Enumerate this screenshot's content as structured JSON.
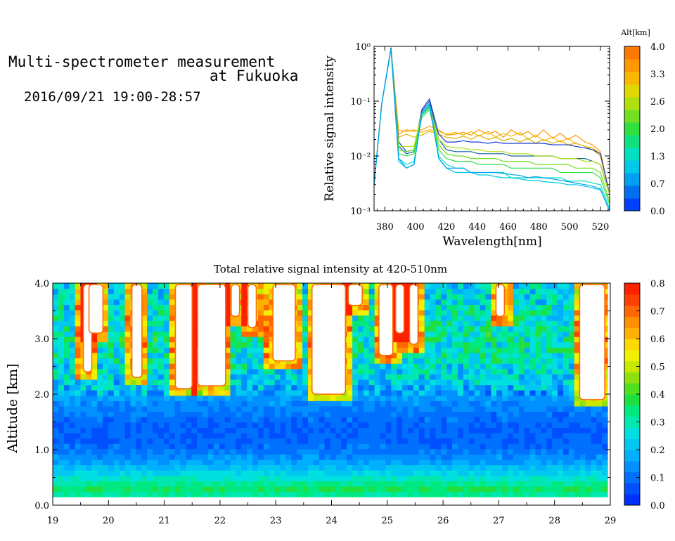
{
  "header": {
    "title_line1": "Multi-spectrometer measurement",
    "title_line2": "at Fukuoka",
    "datetime": "2016/09/21 19:00-28:57"
  },
  "chart_data": [
    {
      "type": "line",
      "xlabel": "Wavelength[nm]",
      "ylabel": "Relative signal intensity",
      "xlim": [
        373,
        526
      ],
      "ylim": [
        0.001,
        1
      ],
      "log_y": true,
      "x_ticks": [
        380,
        400,
        420,
        440,
        460,
        480,
        500,
        520
      ],
      "y_ticks": [
        "10⁻³",
        "10⁻²",
        "10⁻¹",
        "10⁰"
      ],
      "colorbar": {
        "title": "Alt[km]",
        "ticks": [
          "0.0",
          "0.7",
          "1.3",
          "2.0",
          "2.6",
          "3.3",
          "4.0"
        ],
        "colors": [
          "#0040ff",
          "#0070f0",
          "#00a0f0",
          "#00c8e8",
          "#00e0c0",
          "#10e080",
          "#30e040",
          "#70e020",
          "#b0e010",
          "#e0d800",
          "#f8b800",
          "#ff9800",
          "#ff7800"
        ]
      },
      "x": [
        373,
        378,
        384,
        389,
        394,
        399,
        404,
        409,
        415,
        420,
        426,
        431,
        436,
        441,
        447,
        452,
        457,
        462,
        468,
        473,
        478,
        483,
        489,
        494,
        499,
        504,
        510,
        515,
        520,
        526
      ],
      "series": [
        {
          "color": "#ff9800",
          "values": [
            0.003,
            0.09,
            0.9,
            0.025,
            0.03,
            0.028,
            0.03,
            0.035,
            0.03,
            0.024,
            0.025,
            0.027,
            0.024,
            0.03,
            0.025,
            0.028,
            0.022,
            0.03,
            0.024,
            0.028,
            0.022,
            0.03,
            0.021,
            0.026,
            0.02,
            0.024,
            0.018,
            0.016,
            0.012,
            0.002
          ]
        },
        {
          "color": "#f8b800",
          "values": [
            0.003,
            0.09,
            0.9,
            0.03,
            0.028,
            0.03,
            0.027,
            0.03,
            0.028,
            0.025,
            0.027,
            0.024,
            0.028,
            0.023,
            0.028,
            0.022,
            0.026,
            0.023,
            0.027,
            0.02,
            0.024,
            0.019,
            0.022,
            0.018,
            0.021,
            0.017,
            0.015,
            0.014,
            0.011,
            0.002
          ]
        },
        {
          "color": "#e0b000",
          "values": [
            0.003,
            0.09,
            0.9,
            0.022,
            0.025,
            0.022,
            0.024,
            0.028,
            0.025,
            0.022,
            0.021,
            0.023,
            0.02,
            0.024,
            0.02,
            0.022,
            0.019,
            0.021,
            0.018,
            0.021,
            0.017,
            0.02,
            0.017,
            0.019,
            0.016,
            0.017,
            0.015,
            0.013,
            0.01,
            0.002
          ]
        },
        {
          "color": "#1a3ccf",
          "values": [
            0.003,
            0.09,
            0.95,
            0.018,
            0.012,
            0.013,
            0.07,
            0.11,
            0.025,
            0.018,
            0.018,
            0.019,
            0.018,
            0.018,
            0.017,
            0.018,
            0.017,
            0.017,
            0.017,
            0.017,
            0.017,
            0.017,
            0.016,
            0.016,
            0.016,
            0.015,
            0.014,
            0.013,
            0.011,
            0.002
          ]
        },
        {
          "color": "#1060a0",
          "values": [
            0.003,
            0.09,
            0.95,
            0.015,
            0.011,
            0.012,
            0.065,
            0.1,
            0.02,
            0.013,
            0.012,
            0.012,
            0.012,
            0.011,
            0.011,
            0.011,
            0.011,
            0.01,
            0.01,
            0.01,
            0.01,
            0.01,
            0.01,
            0.009,
            0.009,
            0.009,
            0.009,
            0.008,
            0.007,
            0.002
          ]
        },
        {
          "color": "#b0e010",
          "values": [
            0.003,
            0.09,
            0.9,
            0.015,
            0.015,
            0.015,
            0.06,
            0.08,
            0.02,
            0.015,
            0.014,
            0.014,
            0.013,
            0.013,
            0.012,
            0.012,
            0.012,
            0.011,
            0.011,
            0.011,
            0.01,
            0.01,
            0.01,
            0.009,
            0.009,
            0.009,
            0.008,
            0.008,
            0.007,
            0.002
          ]
        },
        {
          "color": "#70e020",
          "values": [
            0.003,
            0.09,
            0.9,
            0.013,
            0.012,
            0.013,
            0.055,
            0.075,
            0.016,
            0.011,
            0.01,
            0.01,
            0.009,
            0.009,
            0.009,
            0.009,
            0.008,
            0.008,
            0.008,
            0.008,
            0.007,
            0.007,
            0.007,
            0.007,
            0.007,
            0.006,
            0.006,
            0.006,
            0.005,
            0.0015
          ]
        },
        {
          "color": "#30e040",
          "values": [
            0.003,
            0.09,
            0.9,
            0.011,
            0.01,
            0.011,
            0.05,
            0.07,
            0.013,
            0.009,
            0.008,
            0.008,
            0.008,
            0.007,
            0.007,
            0.007,
            0.007,
            0.006,
            0.006,
            0.006,
            0.006,
            0.006,
            0.006,
            0.005,
            0.005,
            0.005,
            0.005,
            0.005,
            0.004,
            0.0013
          ]
        },
        {
          "color": "#00e0c0",
          "values": [
            0.003,
            0.09,
            0.9,
            0.009,
            0.007,
            0.008,
            0.055,
            0.08,
            0.01,
            0.007,
            0.006,
            0.006,
            0.005,
            0.005,
            0.005,
            0.005,
            0.005,
            0.004,
            0.004,
            0.004,
            0.004,
            0.004,
            0.004,
            0.004,
            0.0035,
            0.0035,
            0.0035,
            0.0032,
            0.003,
            0.0011
          ]
        },
        {
          "color": "#00c8e8",
          "values": [
            0.003,
            0.09,
            0.9,
            0.008,
            0.006,
            0.007,
            0.055,
            0.085,
            0.009,
            0.006,
            0.005,
            0.005,
            0.005,
            0.0045,
            0.0045,
            0.0042,
            0.004,
            0.004,
            0.0038,
            0.0036,
            0.0036,
            0.0034,
            0.0033,
            0.0032,
            0.003,
            0.003,
            0.0028,
            0.0026,
            0.0024,
            0.001
          ]
        },
        {
          "color": "#00a0f0",
          "values": [
            0.003,
            0.09,
            0.9,
            0.009,
            0.006,
            0.007,
            0.06,
            0.09,
            0.009,
            0.006,
            0.006,
            0.006,
            0.005,
            0.005,
            0.005,
            0.005,
            0.0048,
            0.0046,
            0.0044,
            0.004,
            0.0042,
            0.004,
            0.0038,
            0.0036,
            0.0034,
            0.0032,
            0.003,
            0.0028,
            0.0025,
            0.001
          ]
        }
      ]
    },
    {
      "type": "heatmap",
      "title": "Total relative signal intensity at 420-510nm",
      "xlabel": "",
      "ylabel": "Altitude [km]",
      "xlim": [
        19,
        29
      ],
      "ylim": [
        0.0,
        4.0
      ],
      "x_ticks": [
        "19",
        "20",
        "21",
        "22",
        "23",
        "24",
        "25",
        "26",
        "27",
        "28",
        "29"
      ],
      "y_ticks": [
        "0.0",
        "1.0",
        "2.0",
        "3.0",
        "4.0"
      ],
      "x_range_data": [
        19.0,
        28.95
      ],
      "alt_range_data": [
        0.15,
        4.0
      ],
      "colorbar": {
        "ticks": [
          "0.0",
          "0.1",
          "0.2",
          "0.3",
          "0.4",
          "0.5",
          "0.6",
          "0.7",
          "0.8"
        ],
        "colors": [
          "#0030ff",
          "#0050ff",
          "#0070ff",
          "#0090ff",
          "#00b0ff",
          "#00c8f0",
          "#00e0e0",
          "#00e8b0",
          "#00e880",
          "#20e040",
          "#50e020",
          "#90e010",
          "#c8e800",
          "#f0f000",
          "#ffd800",
          "#ffb000",
          "#ff9000",
          "#ff6800",
          "#ff4000",
          "#ff2000"
        ],
        "range": [
          0.0,
          0.8
        ]
      },
      "profile": [
        {
          "alt": 0.15,
          "v": 0.3
        },
        {
          "alt": 0.3,
          "v": 0.36
        },
        {
          "alt": 0.45,
          "v": 0.3
        },
        {
          "alt": 0.6,
          "v": 0.23
        },
        {
          "alt": 0.8,
          "v": 0.16
        },
        {
          "alt": 1.0,
          "v": 0.1
        },
        {
          "alt": 1.3,
          "v": 0.08
        },
        {
          "alt": 1.6,
          "v": 0.1
        },
        {
          "alt": 1.9,
          "v": 0.15
        },
        {
          "alt": 2.2,
          "v": 0.22
        },
        {
          "alt": 2.6,
          "v": 0.27
        },
        {
          "alt": 3.0,
          "v": 0.3
        },
        {
          "alt": 3.5,
          "v": 0.27
        },
        {
          "alt": 4.0,
          "v": 0.22
        }
      ],
      "cloud_blocks": [
        {
          "t0": 19.55,
          "t1": 19.7,
          "base": 2.4
        },
        {
          "t0": 19.65,
          "t1": 19.9,
          "base": 3.1
        },
        {
          "t0": 20.42,
          "t1": 20.6,
          "base": 2.3
        },
        {
          "t0": 21.2,
          "t1": 21.5,
          "base": 2.1
        },
        {
          "t0": 21.6,
          "t1": 22.1,
          "base": 2.15
        },
        {
          "t0": 22.2,
          "t1": 22.35,
          "base": 3.4
        },
        {
          "t0": 22.5,
          "t1": 22.65,
          "base": 3.2
        },
        {
          "t0": 22.95,
          "t1": 23.35,
          "base": 2.6
        },
        {
          "t0": 23.65,
          "t1": 24.25,
          "base": 2.0
        },
        {
          "t0": 24.3,
          "t1": 24.55,
          "base": 3.6
        },
        {
          "t0": 24.85,
          "t1": 25.1,
          "base": 2.7
        },
        {
          "t0": 25.15,
          "t1": 25.3,
          "base": 3.1
        },
        {
          "t0": 25.4,
          "t1": 25.55,
          "base": 2.9
        },
        {
          "t0": 26.95,
          "t1": 27.1,
          "base": 3.4
        },
        {
          "t0": 28.45,
          "t1": 28.9,
          "base": 1.9
        }
      ]
    }
  ]
}
